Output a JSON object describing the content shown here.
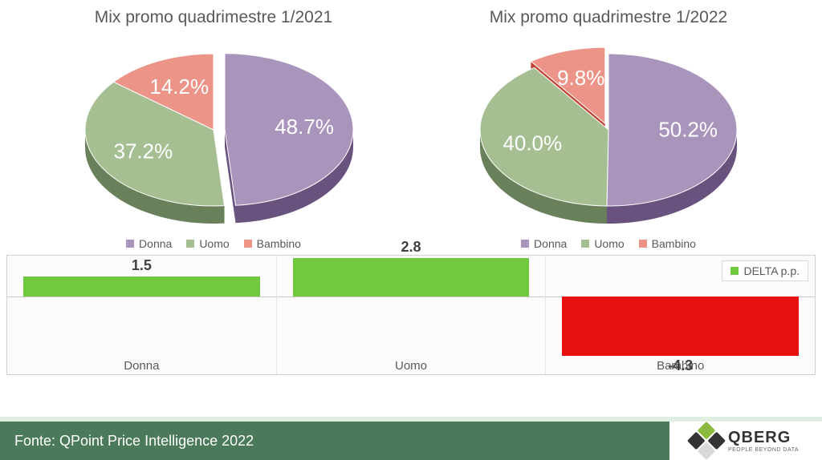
{
  "colors": {
    "donna": "#a995bc",
    "donna_dark": "#6a527f",
    "uomo": "#a5bf93",
    "uomo_dark": "#69815a",
    "bambino": "#ed9489",
    "bambino_dark": "#c24436",
    "delta_pos": "#70c93f",
    "delta_neg": "#e61010",
    "title_text": "#595959",
    "panel_border": "#d0d0d0",
    "footer_bar": "#4a7a5a",
    "footer_trim": "#dfeee3"
  },
  "pies": [
    {
      "title": "Mix promo quadrimestre 1/2021",
      "slices": [
        {
          "key": "donna",
          "label": "Donna",
          "value": 48.7,
          "display": "48.7%",
          "exploded": true
        },
        {
          "key": "uomo",
          "label": "Uomo",
          "value": 37.2,
          "display": "37.2%",
          "exploded": false
        },
        {
          "key": "bambino",
          "label": "Bambino",
          "value": 14.2,
          "display": "14.2%",
          "exploded": false
        }
      ]
    },
    {
      "title": "Mix promo quadrimestre 1/2022",
      "slices": [
        {
          "key": "donna",
          "label": "Donna",
          "value": 50.2,
          "display": "50.2%",
          "exploded": false
        },
        {
          "key": "uomo",
          "label": "Uomo",
          "value": 40.0,
          "display": "40.0%",
          "exploded": false
        },
        {
          "key": "bambino",
          "label": "Bambino",
          "value": 9.8,
          "display": "9.8%",
          "exploded": true
        }
      ]
    }
  ],
  "legend_order": [
    "donna",
    "uomo",
    "bambino"
  ],
  "legend_labels": {
    "donna": "Donna",
    "uomo": "Uomo",
    "bambino": "Bambino"
  },
  "delta": {
    "legend_label": "DELTA p.p.",
    "scale": {
      "min": -4.5,
      "max": 3.0
    },
    "items": [
      {
        "category": "Donna",
        "value": 1.5,
        "display": "1.5"
      },
      {
        "category": "Uomo",
        "value": 2.8,
        "display": "2.8"
      },
      {
        "category": "Bambino",
        "value": -4.3,
        "display": "-4.3"
      }
    ]
  },
  "footer": {
    "source_text": "Fonte: QPoint Price Intelligence 2022",
    "brand": "QBERG",
    "tagline": "PEOPLE BEYOND DATA",
    "logo_colors": [
      "#8cba3f",
      "#333333",
      "#333333",
      "#d9d9d9"
    ]
  },
  "typography": {
    "title_fontsize": 21,
    "slice_label_fontsize": 26,
    "legend_fontsize": 14,
    "delta_value_fontsize": 18,
    "delta_cat_fontsize": 15,
    "footer_fontsize": 18
  }
}
